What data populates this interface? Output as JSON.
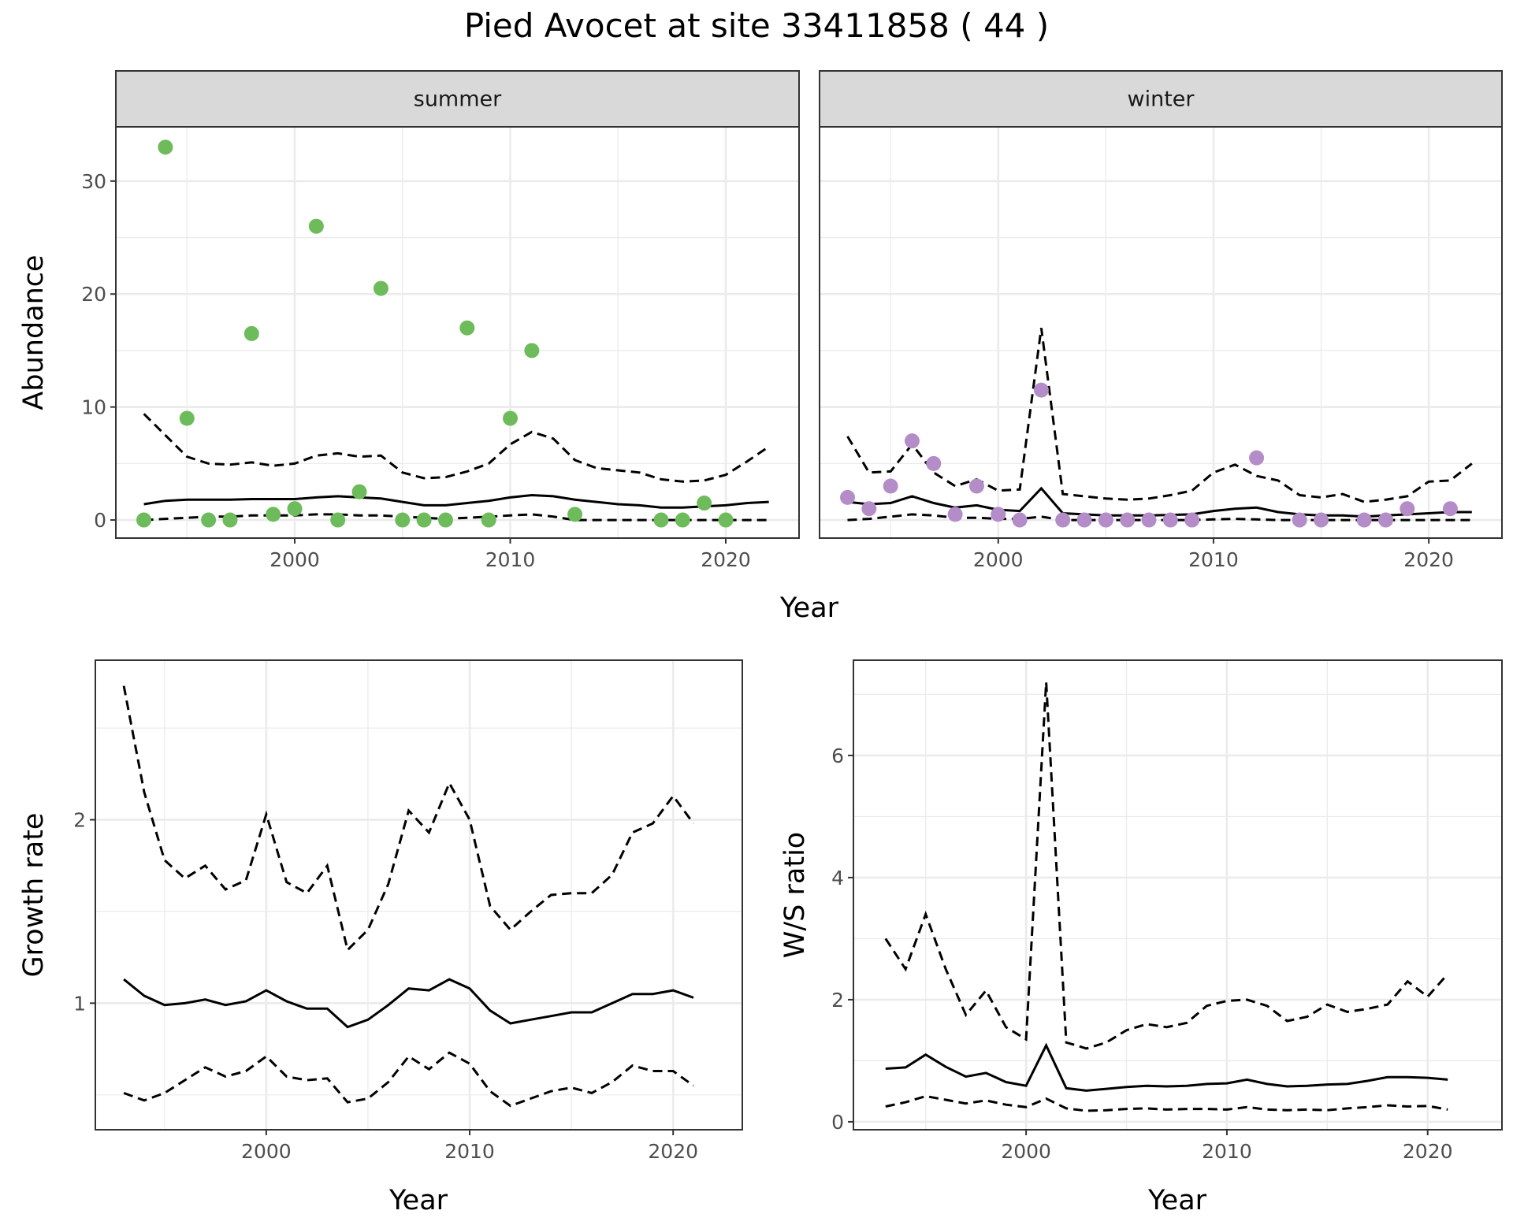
{
  "title": "Pied Avocet at site 33411858 ( 44 )",
  "colors": {
    "summer": "#6dbb5b",
    "winter": "#b48cc8",
    "line": "#000000",
    "grid": "#ebebeb",
    "strip": "#d9d9d9"
  },
  "chart_data": [
    {
      "type": "scatter+line",
      "facet": "summer",
      "xlabel": "Year",
      "ylabel": "Abundance",
      "xlim": [
        1991.7,
        2023.4
      ],
      "ylim": [
        -1.6,
        34.8
      ],
      "xticks": [
        2000,
        2010,
        2020
      ],
      "yticks": [
        0,
        10,
        20,
        30
      ],
      "grid": true,
      "points": {
        "x": [
          1993,
          1994,
          1995,
          1996,
          1997,
          1998,
          1999,
          2000,
          2001,
          2002,
          2003,
          2004,
          2005,
          2006,
          2007,
          2008,
          2009,
          2010,
          2011,
          2013,
          2017,
          2018,
          2019,
          2020
        ],
        "y": [
          0,
          33,
          9,
          0,
          0,
          16.5,
          0.5,
          1,
          26,
          0,
          2.5,
          20.5,
          0,
          0,
          0,
          17,
          0,
          9,
          15,
          0.5,
          0,
          0,
          1.5,
          0
        ]
      },
      "line_x": [
        1993,
        1994,
        1995,
        1996,
        1997,
        1998,
        1999,
        2000,
        2001,
        2002,
        2003,
        2004,
        2005,
        2006,
        2007,
        2008,
        2009,
        2010,
        2011,
        2012,
        2013,
        2014,
        2015,
        2016,
        2017,
        2018,
        2019,
        2020,
        2021,
        2022
      ],
      "mean": [
        1.4,
        1.7,
        1.8,
        1.8,
        1.8,
        1.85,
        1.85,
        1.85,
        2.0,
        2.1,
        2.0,
        1.9,
        1.6,
        1.3,
        1.3,
        1.5,
        1.7,
        2.0,
        2.2,
        2.1,
        1.8,
        1.6,
        1.4,
        1.3,
        1.1,
        1.1,
        1.2,
        1.3,
        1.5,
        1.6
      ],
      "upper": [
        9.4,
        7.5,
        5.6,
        5.0,
        4.9,
        5.1,
        4.8,
        5.0,
        5.7,
        5.9,
        5.6,
        5.7,
        4.2,
        3.7,
        3.8,
        4.3,
        5.0,
        6.7,
        7.8,
        7.2,
        5.3,
        4.6,
        4.4,
        4.2,
        3.6,
        3.4,
        3.5,
        4.0,
        5.2,
        6.5
      ],
      "lower": [
        0,
        0.1,
        0.2,
        0.3,
        0.3,
        0.4,
        0.4,
        0.4,
        0.5,
        0.5,
        0.4,
        0.4,
        0.3,
        0.2,
        0.1,
        0.2,
        0.3,
        0.4,
        0.5,
        0.3,
        0,
        0,
        0,
        0,
        0,
        0,
        0,
        0,
        0,
        0
      ]
    },
    {
      "type": "scatter+line",
      "facet": "winter",
      "xlabel": "Year",
      "ylabel": "Abundance",
      "xlim": [
        1991.7,
        2023.4
      ],
      "ylim": [
        -1.6,
        34.8
      ],
      "xticks": [
        2000,
        2010,
        2020
      ],
      "yticks": [
        0,
        10,
        20,
        30
      ],
      "grid": true,
      "points": {
        "x": [
          1993,
          1994,
          1995,
          1996,
          1997,
          1998,
          1999,
          2000,
          2001,
          2002,
          2003,
          2004,
          2005,
          2006,
          2007,
          2008,
          2009,
          2012,
          2014,
          2015,
          2017,
          2018,
          2019,
          2021
        ],
        "y": [
          2,
          1,
          3,
          7,
          5,
          0.5,
          3,
          0.5,
          0,
          11.5,
          0,
          0,
          0,
          0,
          0,
          0,
          0,
          5.5,
          0,
          0,
          0,
          0,
          1,
          1
        ]
      },
      "line_x": [
        1993,
        1994,
        1995,
        1996,
        1997,
        1998,
        1999,
        2000,
        2001,
        2002,
        2003,
        2004,
        2005,
        2006,
        2007,
        2008,
        2009,
        2010,
        2011,
        2012,
        2013,
        2014,
        2015,
        2016,
        2017,
        2018,
        2019,
        2020,
        2021,
        2022
      ],
      "mean": [
        1.6,
        1.4,
        1.5,
        2.1,
        1.5,
        1.1,
        1.3,
        0.9,
        0.8,
        2.8,
        0.6,
        0.5,
        0.4,
        0.4,
        0.4,
        0.45,
        0.5,
        0.8,
        1.0,
        1.1,
        0.7,
        0.5,
        0.4,
        0.4,
        0.3,
        0.4,
        0.5,
        0.6,
        0.7,
        0.7
      ],
      "upper": [
        7.4,
        4.2,
        4.3,
        6.7,
        4.2,
        3.0,
        3.6,
        2.6,
        2.7,
        17,
        2.3,
        2.1,
        1.9,
        1.8,
        1.9,
        2.2,
        2.6,
        4.2,
        4.9,
        3.9,
        3.5,
        2.2,
        2.0,
        2.3,
        1.6,
        1.8,
        2.1,
        3.4,
        3.5,
        5.0
      ],
      "lower": [
        0,
        0.1,
        0.3,
        0.5,
        0.4,
        0.2,
        0.2,
        0.1,
        0.1,
        0.3,
        0,
        0,
        0,
        0,
        0,
        0,
        0,
        0.05,
        0.1,
        0.05,
        0,
        0,
        0,
        0,
        0,
        0,
        0,
        0,
        0,
        0
      ]
    },
    {
      "type": "line",
      "xlabel": "Year",
      "ylabel": "Growth rate",
      "xlim": [
        1991.6,
        2023.4
      ],
      "ylim": [
        0.31,
        2.87
      ],
      "xticks": [
        2000,
        2010,
        2020
      ],
      "yticks": [
        1,
        2
      ],
      "grid": true,
      "line_x": [
        1993,
        1994,
        1995,
        1996,
        1997,
        1998,
        1999,
        2000,
        2001,
        2002,
        2003,
        2004,
        2005,
        2006,
        2007,
        2008,
        2009,
        2010,
        2011,
        2012,
        2013,
        2014,
        2015,
        2016,
        2017,
        2018,
        2019,
        2020,
        2021
      ],
      "mean": [
        1.13,
        1.04,
        0.99,
        1.0,
        1.02,
        0.99,
        1.01,
        1.07,
        1.01,
        0.97,
        0.97,
        0.87,
        0.91,
        0.99,
        1.08,
        1.07,
        1.13,
        1.08,
        0.96,
        0.89,
        0.91,
        0.93,
        0.95,
        0.95,
        1.0,
        1.05,
        1.05,
        1.07,
        1.03
      ],
      "upper": [
        2.73,
        2.15,
        1.78,
        1.68,
        1.75,
        1.62,
        1.67,
        2.03,
        1.66,
        1.6,
        1.75,
        1.29,
        1.4,
        1.65,
        2.05,
        1.93,
        2.2,
        2.0,
        1.53,
        1.4,
        1.5,
        1.59,
        1.6,
        1.6,
        1.7,
        1.93,
        1.98,
        2.13,
        1.98
      ],
      "lower": [
        0.51,
        0.47,
        0.51,
        0.58,
        0.65,
        0.6,
        0.63,
        0.71,
        0.6,
        0.58,
        0.59,
        0.46,
        0.48,
        0.57,
        0.71,
        0.64,
        0.73,
        0.67,
        0.52,
        0.44,
        0.48,
        0.52,
        0.54,
        0.51,
        0.57,
        0.66,
        0.63,
        0.63,
        0.55
      ]
    },
    {
      "type": "line",
      "xlabel": "Year",
      "ylabel": "W/S ratio",
      "xlim": [
        1991.4,
        2023.7
      ],
      "ylim": [
        -0.13,
        7.56
      ],
      "xticks": [
        2000,
        2010,
        2020
      ],
      "yticks": [
        0,
        2,
        4,
        6
      ],
      "grid": true,
      "line_x": [
        1993,
        1994,
        1995,
        1996,
        1997,
        1998,
        1999,
        2000,
        2001,
        2002,
        2003,
        2004,
        2005,
        2006,
        2007,
        2008,
        2009,
        2010,
        2011,
        2012,
        2013,
        2014,
        2015,
        2016,
        2017,
        2018,
        2019,
        2020,
        2021
      ],
      "mean": [
        0.87,
        0.89,
        1.1,
        0.9,
        0.74,
        0.8,
        0.65,
        0.59,
        1.25,
        0.55,
        0.51,
        0.54,
        0.57,
        0.59,
        0.58,
        0.59,
        0.62,
        0.63,
        0.69,
        0.62,
        0.58,
        0.59,
        0.61,
        0.62,
        0.67,
        0.73,
        0.73,
        0.72,
        0.69
      ],
      "upper": [
        3.0,
        2.5,
        3.4,
        2.5,
        1.75,
        2.15,
        1.55,
        1.35,
        7.2,
        1.3,
        1.2,
        1.3,
        1.5,
        1.6,
        1.55,
        1.62,
        1.9,
        1.98,
        2.0,
        1.9,
        1.65,
        1.72,
        1.92,
        1.8,
        1.85,
        1.92,
        2.3,
        2.05,
        2.42
      ],
      "lower": [
        0.25,
        0.32,
        0.42,
        0.36,
        0.3,
        0.35,
        0.28,
        0.24,
        0.38,
        0.22,
        0.18,
        0.19,
        0.21,
        0.22,
        0.2,
        0.21,
        0.21,
        0.2,
        0.24,
        0.2,
        0.19,
        0.2,
        0.19,
        0.22,
        0.24,
        0.27,
        0.25,
        0.26,
        0.2
      ]
    }
  ]
}
